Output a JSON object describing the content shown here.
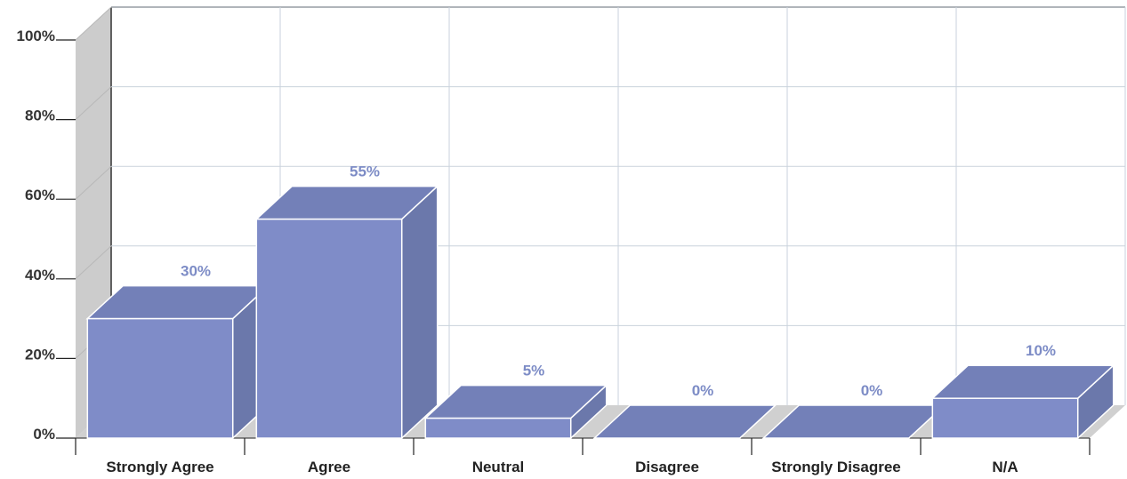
{
  "chart_data": {
    "type": "bar",
    "categories": [
      "Strongly Agree",
      "Agree",
      "Neutral",
      "Disagree",
      "Strongly Disagree",
      "N/A"
    ],
    "values": [
      30,
      55,
      5,
      0,
      0,
      10
    ],
    "value_labels": [
      "30%",
      "55%",
      "5%",
      "0%",
      "0%",
      "10%"
    ],
    "y_ticks": [
      0,
      20,
      40,
      60,
      80,
      100
    ],
    "y_tick_labels": [
      "0%",
      "20%",
      "40%",
      "60%",
      "80%",
      "100%"
    ],
    "ylim": [
      0,
      100
    ],
    "grid": true,
    "style": "3d",
    "colors": {
      "bar_front": "#7f8cc8",
      "bar_top": "#7380b8",
      "bar_side": "#6b78ab",
      "data_label": "#7d8cc6",
      "grid": "#c9d2dc",
      "wall": "#cccccc",
      "wall_edge": "#333333",
      "floor": "#d0d0d0"
    }
  }
}
